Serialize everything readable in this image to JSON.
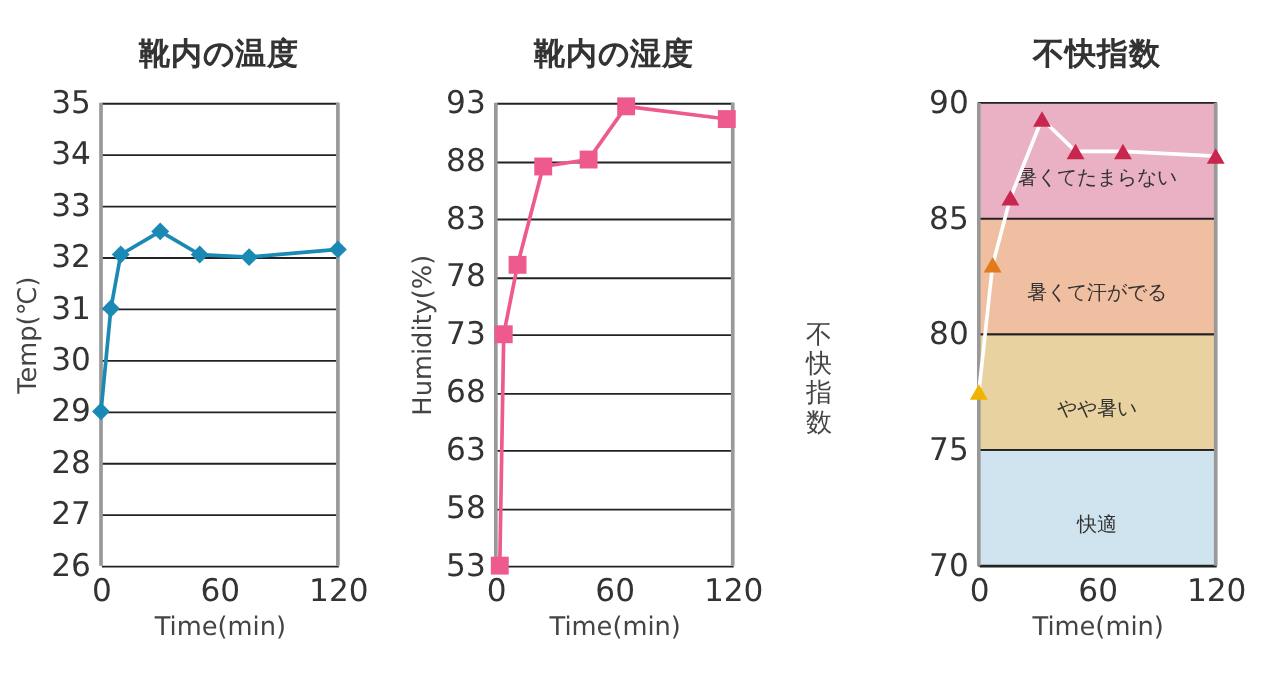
{
  "chart_data": [
    {
      "type": "line",
      "title": "靴内の温度",
      "xlabel": "Time(min)",
      "ylabel": "Temp(℃)",
      "x": [
        0,
        5,
        10,
        30,
        50,
        75,
        120
      ],
      "series": [
        {
          "color": "#1a8ab5",
          "values": [
            29,
            31,
            32.05,
            32.5,
            32.05,
            32.0,
            32.15
          ],
          "line_style": "solid"
        }
      ],
      "xlim": [
        0,
        120
      ],
      "xticks": [
        0,
        60,
        120
      ],
      "ylim": [
        26,
        35
      ],
      "yticks": [
        26,
        27,
        28,
        29,
        30,
        31,
        32,
        33,
        34,
        35
      ],
      "grid": "y",
      "marker": "diamond",
      "legend": false
    },
    {
      "type": "line",
      "title": "靴内の湿度",
      "xlabel": "Time(min)",
      "ylabel": "Humidity(%)",
      "x": [
        2,
        4,
        11,
        24,
        47,
        66,
        117
      ],
      "series": [
        {
          "color": "#ee5a8e",
          "values": [
            53,
            73,
            79,
            87.5,
            88.1,
            92.7,
            91.6
          ],
          "line_style": "solid"
        }
      ],
      "xlim": [
        0,
        120
      ],
      "xticks": [
        0,
        60,
        120
      ],
      "ylim": [
        53,
        93
      ],
      "yticks": [
        53,
        58,
        63,
        68,
        73,
        78,
        83,
        88,
        93
      ],
      "grid": "y",
      "marker": "square",
      "legend": false
    },
    {
      "type": "line",
      "title": "不快指数",
      "xlabel": "Time(min)",
      "ylabel": "不快指数",
      "x": [
        0,
        7,
        16,
        32,
        49,
        73,
        120
      ],
      "series": [
        {
          "color": "#ffffff",
          "colors": [
            "#f0b400",
            "#e07a1a",
            "#c8254f",
            "#c8254f",
            "#c8254f",
            "#c8254f",
            "#c8254f"
          ],
          "values": [
            77.5,
            83.0,
            85.9,
            89.3,
            87.9,
            87.9,
            87.7
          ],
          "line_style": "solid"
        }
      ],
      "bands": [
        {
          "axis": "y",
          "from": 70,
          "to": 75,
          "label": "快適",
          "color": "#cfe4ee"
        },
        {
          "axis": "y",
          "from": 75,
          "to": 80,
          "label": "やや暑い",
          "color": "#e8d3a0"
        },
        {
          "axis": "y",
          "from": 80,
          "to": 85,
          "label": "暑くて汗がでる",
          "color": "#f0bea0"
        },
        {
          "axis": "y",
          "from": 85,
          "to": 90,
          "label": "暑くてたまらない",
          "color": "#eab0c4"
        }
      ],
      "xlim": [
        0,
        120
      ],
      "xticks": [
        0,
        60,
        120
      ],
      "ylim": [
        70,
        90
      ],
      "yticks": [
        70,
        75,
        80,
        85,
        90
      ],
      "grid": "y",
      "marker": "triangle",
      "legend": false
    }
  ]
}
